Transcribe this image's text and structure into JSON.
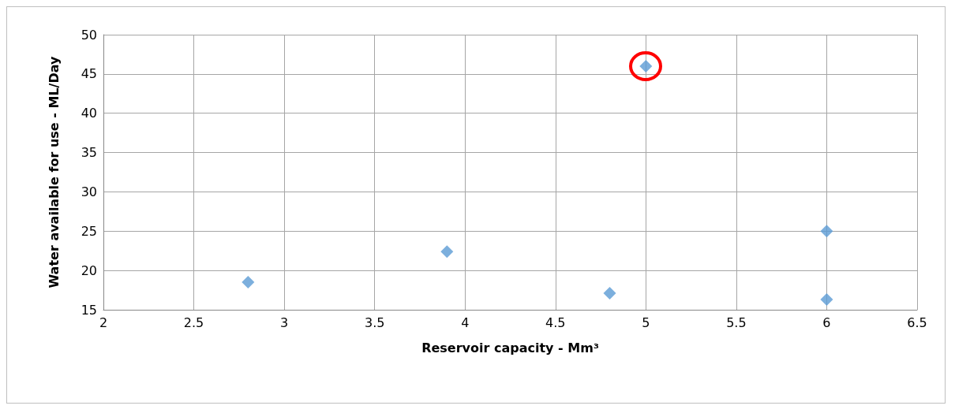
{
  "chart_data": {
    "type": "scatter",
    "xlabel": "Reservoir capacity - Mm³",
    "ylabel": "Water available for use - ML/Day",
    "x": [
      2.8,
      3.9,
      4.8,
      5.0,
      6.0,
      6.0
    ],
    "values": [
      18.5,
      22.4,
      17.1,
      46,
      25,
      16.3
    ],
    "color": "#5b9bd5",
    "marker": "diamond",
    "xlim": [
      2,
      6.5
    ],
    "xticks": [
      2,
      2.5,
      3,
      3.5,
      4,
      4.5,
      5,
      5.5,
      6,
      6.5
    ],
    "ylim": [
      15,
      50
    ],
    "yticks": [
      15,
      20,
      25,
      30,
      35,
      40,
      45,
      50
    ],
    "grid": true
  }
}
